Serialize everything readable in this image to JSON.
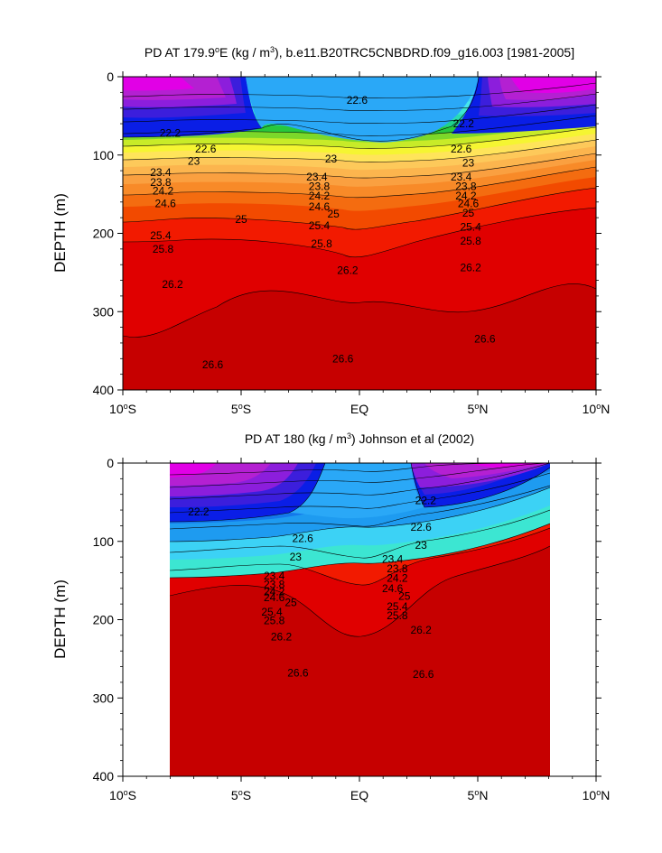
{
  "chart_data": [
    {
      "type": "contour",
      "title_prefix": "PD AT 179.9",
      "title_sup_o": "o",
      "title_mid": "E (kg / m",
      "title_sup_3": "3",
      "title_suffix": "), b.e11.B20TRC5CNBDRD.f09_g16.003 [1981-2005]",
      "ylabel": "DEPTH (m)",
      "xlim": [
        -10,
        10
      ],
      "ylim": [
        400,
        0
      ],
      "data_xlim": [
        -10,
        10
      ],
      "x_ticks": [
        {
          "v": -10,
          "num": "10",
          "hemi": "S"
        },
        {
          "v": -5,
          "num": "5",
          "hemi": "S"
        },
        {
          "v": 0,
          "num": "EQ",
          "hemi": ""
        },
        {
          "v": 5,
          "num": "5",
          "hemi": "N"
        },
        {
          "v": 10,
          "num": "10",
          "hemi": "N"
        }
      ],
      "y_ticks": [
        "0",
        "100",
        "200",
        "300",
        "400"
      ],
      "contour_labels": [
        {
          "text": "22.6",
          "x": -0.1,
          "y": 30
        },
        {
          "text": "22.2",
          "x": 4.4,
          "y": 60
        },
        {
          "text": "22.2",
          "x": -8.0,
          "y": 72
        },
        {
          "text": "22.6",
          "x": -6.5,
          "y": 92
        },
        {
          "text": "22.6",
          "x": 4.3,
          "y": 92
        },
        {
          "text": "23",
          "x": -7.0,
          "y": 108
        },
        {
          "text": "23",
          "x": -1.2,
          "y": 105
        },
        {
          "text": "23",
          "x": 4.6,
          "y": 110
        },
        {
          "text": "23.4",
          "x": -8.4,
          "y": 122
        },
        {
          "text": "23.4",
          "x": -1.8,
          "y": 128
        },
        {
          "text": "23.4",
          "x": 4.3,
          "y": 128
        },
        {
          "text": "23.8",
          "x": -8.4,
          "y": 135
        },
        {
          "text": "23.8",
          "x": -1.7,
          "y": 140
        },
        {
          "text": "23.8",
          "x": 4.5,
          "y": 140
        },
        {
          "text": "24.2",
          "x": -8.3,
          "y": 146
        },
        {
          "text": "24.2",
          "x": -1.7,
          "y": 152
        },
        {
          "text": "24.2",
          "x": 4.5,
          "y": 152
        },
        {
          "text": "24.6",
          "x": -8.2,
          "y": 162
        },
        {
          "text": "24.6",
          "x": -1.7,
          "y": 166
        },
        {
          "text": "24.6",
          "x": 4.6,
          "y": 162
        },
        {
          "text": "25",
          "x": 4.6,
          "y": 174
        },
        {
          "text": "25",
          "x": -5.0,
          "y": 182
        },
        {
          "text": "25",
          "x": -1.1,
          "y": 175
        },
        {
          "text": "25.4",
          "x": -8.4,
          "y": 203
        },
        {
          "text": "25.4",
          "x": -1.7,
          "y": 190
        },
        {
          "text": "25.4",
          "x": 4.7,
          "y": 192
        },
        {
          "text": "25.8",
          "x": -8.3,
          "y": 220
        },
        {
          "text": "25.8",
          "x": -1.6,
          "y": 213
        },
        {
          "text": "25.8",
          "x": 4.7,
          "y": 210
        },
        {
          "text": "26.2",
          "x": -0.5,
          "y": 247
        },
        {
          "text": "26.2",
          "x": 4.7,
          "y": 244
        },
        {
          "text": "26.2",
          "x": -7.9,
          "y": 265
        },
        {
          "text": "26.6",
          "x": -6.2,
          "y": 368
        },
        {
          "text": "26.6",
          "x": -0.7,
          "y": 360
        },
        {
          "text": "26.6",
          "x": 5.3,
          "y": 335
        }
      ]
    },
    {
      "type": "contour",
      "title_prefix": "PD AT 180 (kg / m",
      "title_sup_3": "3",
      "title_suffix": ") Johnson et al (2002)",
      "ylabel": "DEPTH (m)",
      "xlim": [
        -10,
        10
      ],
      "ylim": [
        400,
        0
      ],
      "data_xlim": [
        -8,
        8
      ],
      "x_ticks": [
        {
          "v": -10,
          "num": "10",
          "hemi": "S"
        },
        {
          "v": -5,
          "num": "5",
          "hemi": "S"
        },
        {
          "v": 0,
          "num": "EQ",
          "hemi": ""
        },
        {
          "v": 5,
          "num": "5",
          "hemi": "N"
        },
        {
          "v": 10,
          "num": "10",
          "hemi": "N"
        }
      ],
      "y_ticks": [
        "0",
        "100",
        "200",
        "300",
        "400"
      ],
      "contour_labels": [
        {
          "text": "22.2",
          "x": 2.8,
          "y": 48
        },
        {
          "text": "22.2",
          "x": -6.8,
          "y": 62
        },
        {
          "text": "22.6",
          "x": -2.4,
          "y": 96
        },
        {
          "text": "22.6",
          "x": 2.6,
          "y": 82
        },
        {
          "text": "23",
          "x": -2.7,
          "y": 120
        },
        {
          "text": "23",
          "x": 2.6,
          "y": 105
        },
        {
          "text": "23.4",
          "x": -3.6,
          "y": 144
        },
        {
          "text": "23.4",
          "x": 1.4,
          "y": 123
        },
        {
          "text": "23.8",
          "x": -3.6,
          "y": 155
        },
        {
          "text": "23.8",
          "x": 1.6,
          "y": 135
        },
        {
          "text": "24.2",
          "x": -3.6,
          "y": 164
        },
        {
          "text": "24.2",
          "x": 1.6,
          "y": 147
        },
        {
          "text": "24.6",
          "x": -3.6,
          "y": 172
        },
        {
          "text": "24.6",
          "x": 1.4,
          "y": 160
        },
        {
          "text": "25",
          "x": -2.9,
          "y": 178
        },
        {
          "text": "25",
          "x": 1.9,
          "y": 170
        },
        {
          "text": "25.4",
          "x": -3.7,
          "y": 190
        },
        {
          "text": "25.4",
          "x": 1.6,
          "y": 183
        },
        {
          "text": "25.8",
          "x": -3.6,
          "y": 201
        },
        {
          "text": "25.8",
          "x": 1.6,
          "y": 195
        },
        {
          "text": "26.2",
          "x": 2.6,
          "y": 213
        },
        {
          "text": "26.2",
          "x": -3.3,
          "y": 222
        },
        {
          "text": "26.6",
          "x": -2.6,
          "y": 268
        },
        {
          "text": "26.6",
          "x": 2.7,
          "y": 270
        }
      ]
    }
  ]
}
